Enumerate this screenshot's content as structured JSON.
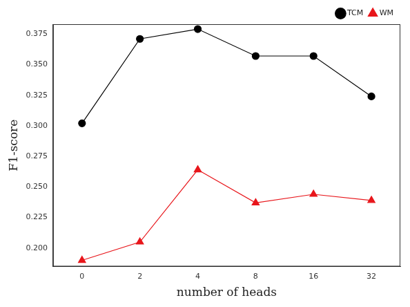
{
  "chart_data": {
    "type": "line",
    "x_label": "number of heads",
    "y_label": "F1-score",
    "categories": [
      "0",
      "2",
      "4",
      "8",
      "16",
      "32"
    ],
    "series": [
      {
        "name": "TCM",
        "color": "#000000",
        "marker": "circle",
        "values": [
          0.302,
          0.371,
          0.379,
          0.357,
          0.357,
          0.324
        ]
      },
      {
        "name": "WM",
        "color": "#e8161b",
        "marker": "triangle",
        "values": [
          0.19,
          0.205,
          0.264,
          0.237,
          0.244,
          0.239
        ]
      }
    ],
    "ylim": [
      0.185,
      0.383
    ],
    "yticks": [
      {
        "value": 0.2,
        "label": "0.200"
      },
      0.225,
      {
        "value": 0.25,
        "label": "0.250"
      },
      0.275,
      {
        "value": 0.3,
        "label": "0.300"
      },
      0.325,
      {
        "value": 0.35,
        "label": "0.350"
      },
      0.375
    ],
    "legend": "upper right",
    "grid": false
  }
}
